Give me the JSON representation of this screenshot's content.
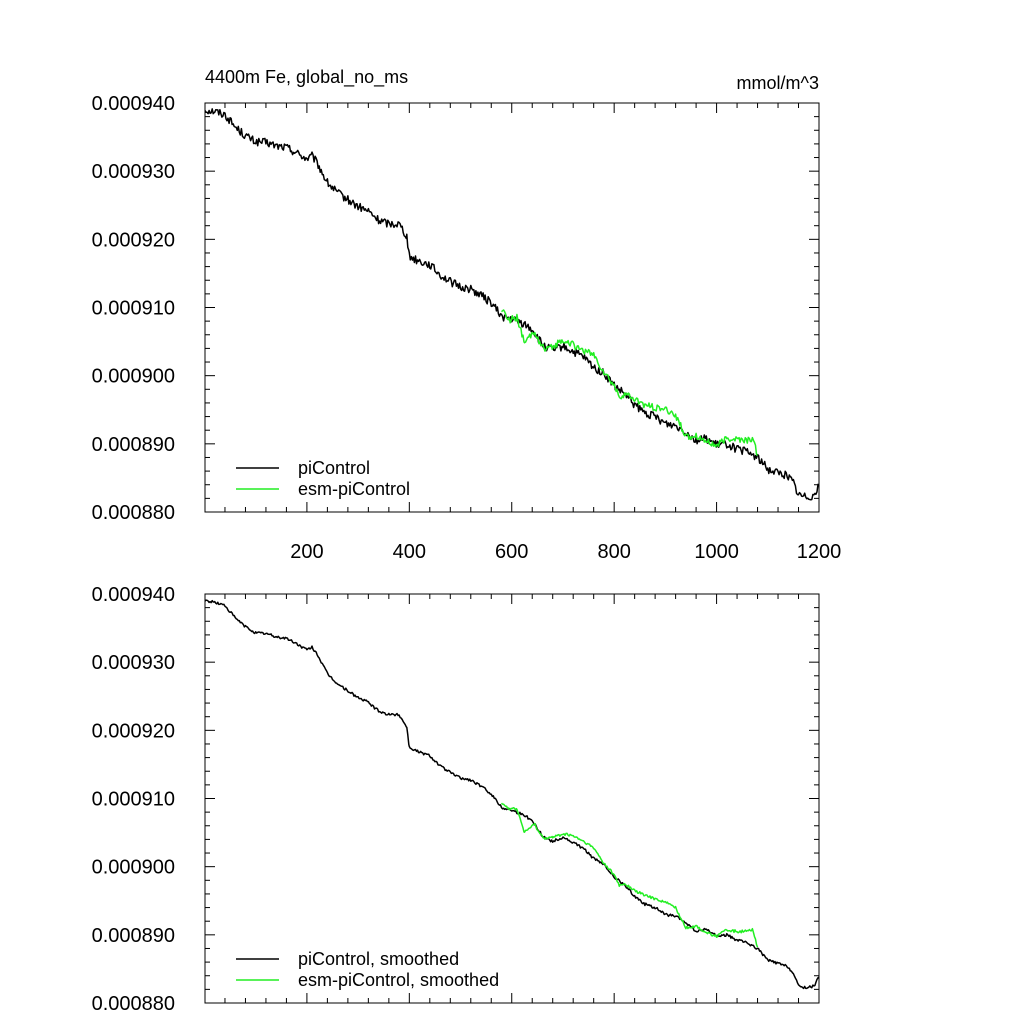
{
  "chart_data": [
    {
      "type": "line",
      "title": "4400m Fe, global_no_ms",
      "units": "mmol/m^3",
      "xlim": [
        1,
        1200
      ],
      "ylim": [
        0.00088,
        0.00094
      ],
      "xticks": [
        200,
        400,
        600,
        800,
        1000,
        1200
      ],
      "yticks": [
        0.00088,
        0.00089,
        0.0009,
        0.00091,
        0.00092,
        0.00093,
        0.00094
      ],
      "ytick_labels": [
        "0.000880",
        "0.000890",
        "0.000900",
        "0.000910",
        "0.000920",
        "0.000930",
        "0.000940"
      ],
      "xtick_labels": [
        "200",
        "400",
        "600",
        "800",
        "1000",
        "1200"
      ],
      "legend_position": "bottom-left",
      "series": [
        {
          "name": "piControl",
          "color": "#000000",
          "noise": 6e-07,
          "x": [
            1,
            20,
            40,
            60,
            80,
            100,
            120,
            140,
            160,
            180,
            200,
            210,
            220,
            240,
            260,
            280,
            300,
            320,
            340,
            360,
            380,
            395,
            400,
            420,
            440,
            460,
            480,
            500,
            520,
            540,
            560,
            580,
            600,
            620,
            640,
            660,
            680,
            700,
            720,
            740,
            760,
            780,
            800,
            820,
            840,
            860,
            880,
            900,
            920,
            940,
            960,
            980,
            1000,
            1020,
            1040,
            1060,
            1080,
            1100,
            1120,
            1140,
            1150,
            1160,
            1170,
            1180,
            1190,
            1200
          ],
          "values": [
            0.000939,
            0.0009388,
            0.0009383,
            0.0009365,
            0.0009352,
            0.0009343,
            0.0009342,
            0.0009337,
            0.0009335,
            0.0009327,
            0.0009318,
            0.0009322,
            0.0009312,
            0.0009283,
            0.0009268,
            0.0009258,
            0.0009248,
            0.0009241,
            0.0009228,
            0.0009223,
            0.0009223,
            0.0009205,
            0.0009175,
            0.0009168,
            0.0009163,
            0.0009148,
            0.0009138,
            0.000913,
            0.0009127,
            0.0009118,
            0.0009107,
            0.0009087,
            0.0009083,
            0.0009077,
            0.0009068,
            0.0009045,
            0.0009037,
            0.0009043,
            0.0009035,
            0.0009027,
            0.0009012,
            0.0009003,
            0.0008985,
            0.0008973,
            0.0008957,
            0.0008945,
            0.000894,
            0.000893,
            0.0008927,
            0.0008918,
            0.0008905,
            0.0008908,
            0.0008898,
            0.00089,
            0.0008892,
            0.0008888,
            0.000888,
            0.0008863,
            0.0008858,
            0.0008853,
            0.0008843,
            0.0008825,
            0.0008823,
            0.0008823,
            0.0008825,
            0.0008838
          ]
        },
        {
          "name": "esm-piControl",
          "color": "#22ee22",
          "noise": 5e-07,
          "x": [
            580,
            595,
            610,
            625,
            635,
            645,
            655,
            665,
            680,
            700,
            720,
            740,
            760,
            780,
            800,
            810,
            820,
            840,
            860,
            880,
            900,
            920,
            940,
            960,
            980,
            1000,
            1020,
            1040,
            1060,
            1070,
            1080
          ],
          "values": [
            0.0009098,
            0.0009082,
            0.0009085,
            0.0009047,
            0.0009057,
            0.0009065,
            0.0009048,
            0.0009037,
            0.0009042,
            0.0009053,
            0.0009045,
            0.0009037,
            0.000903,
            0.0009005,
            0.0008985,
            0.0008968,
            0.0008973,
            0.0008965,
            0.0008957,
            0.0008953,
            0.000895,
            0.0008942,
            0.000891,
            0.0008913,
            0.0008903,
            0.0008897,
            0.0008908,
            0.0008907,
            0.0008905,
            0.0008908,
            0.0008883
          ]
        }
      ]
    },
    {
      "type": "line",
      "xlim": [
        1,
        1200
      ],
      "ylim": [
        0.00088,
        0.00094
      ],
      "xticks": [
        200,
        400,
        600,
        800,
        1000,
        1200
      ],
      "yticks": [
        0.00088,
        0.00089,
        0.0009,
        0.00091,
        0.00092,
        0.00093,
        0.00094
      ],
      "ytick_labels": [
        "0.000880",
        "0.000890",
        "0.000900",
        "0.000910",
        "0.000920",
        "0.000930",
        "0.000940"
      ],
      "legend_position": "bottom-left",
      "series": [
        {
          "name": "piControl, smoothed",
          "color": "#000000",
          "noise": 2e-07,
          "x": [
            1,
            20,
            40,
            60,
            80,
            100,
            120,
            140,
            160,
            180,
            200,
            210,
            220,
            240,
            260,
            280,
            300,
            320,
            340,
            360,
            380,
            395,
            400,
            420,
            440,
            460,
            480,
            500,
            520,
            540,
            560,
            580,
            600,
            620,
            640,
            660,
            680,
            700,
            720,
            740,
            760,
            780,
            800,
            820,
            840,
            860,
            880,
            900,
            920,
            940,
            960,
            980,
            1000,
            1020,
            1040,
            1060,
            1080,
            1100,
            1120,
            1140,
            1150,
            1160,
            1170,
            1180,
            1190,
            1200
          ],
          "values": [
            0.000939,
            0.0009388,
            0.0009383,
            0.0009365,
            0.0009352,
            0.0009343,
            0.0009342,
            0.0009337,
            0.0009335,
            0.0009327,
            0.0009318,
            0.0009322,
            0.0009312,
            0.0009283,
            0.0009268,
            0.0009258,
            0.0009248,
            0.0009241,
            0.0009228,
            0.0009223,
            0.0009223,
            0.0009205,
            0.0009175,
            0.0009168,
            0.0009163,
            0.0009148,
            0.0009138,
            0.000913,
            0.0009127,
            0.0009118,
            0.0009107,
            0.0009087,
            0.0009083,
            0.0009077,
            0.0009068,
            0.0009045,
            0.0009037,
            0.0009043,
            0.0009035,
            0.0009027,
            0.0009012,
            0.0009003,
            0.0008985,
            0.0008973,
            0.0008957,
            0.0008945,
            0.000894,
            0.000893,
            0.0008927,
            0.0008918,
            0.0008905,
            0.0008908,
            0.0008898,
            0.00089,
            0.0008892,
            0.0008888,
            0.000888,
            0.0008863,
            0.0008858,
            0.0008853,
            0.0008843,
            0.0008825,
            0.0008823,
            0.0008823,
            0.0008825,
            0.0008838
          ]
        },
        {
          "name": "esm-piControl, smoothed",
          "color": "#22ee22",
          "noise": 2e-07,
          "x": [
            580,
            595,
            610,
            625,
            635,
            645,
            655,
            665,
            680,
            700,
            720,
            740,
            760,
            780,
            800,
            810,
            820,
            840,
            860,
            880,
            900,
            920,
            940,
            960,
            980,
            1000,
            1020,
            1040,
            1060,
            1070,
            1080
          ],
          "values": [
            0.0009095,
            0.0009085,
            0.0009085,
            0.000905,
            0.0009057,
            0.0009062,
            0.0009048,
            0.0009042,
            0.0009043,
            0.0009048,
            0.0009045,
            0.0009037,
            0.0009027,
            0.0009005,
            0.0008988,
            0.0008972,
            0.0008975,
            0.0008965,
            0.0008958,
            0.0008953,
            0.0008948,
            0.000894,
            0.000891,
            0.0008913,
            0.0008903,
            0.0008898,
            0.0008907,
            0.0008905,
            0.0008905,
            0.0008907,
            0.0008882
          ]
        }
      ]
    }
  ]
}
